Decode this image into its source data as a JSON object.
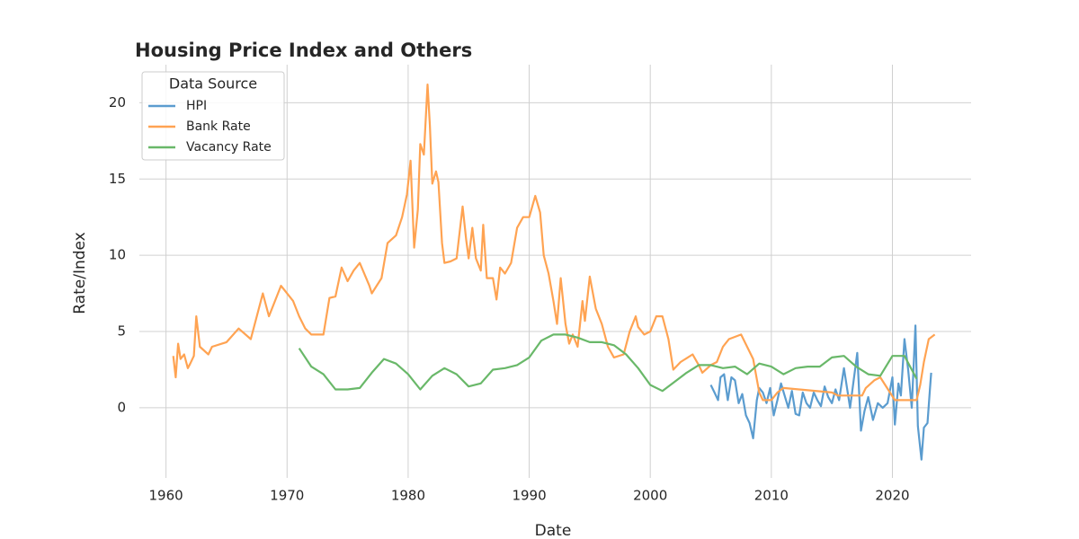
{
  "chart_data": {
    "type": "line",
    "title": "Housing Price Index and Others",
    "x_label": "Date",
    "y_label": "Rate/Index",
    "xlim": [
      1957.8,
      2026.5
    ],
    "xticks": [
      1960,
      1970,
      1980,
      1990,
      2000,
      2010,
      2020
    ],
    "ylim": [
      -4.6,
      22.5
    ],
    "yticks": [
      0,
      5,
      10,
      15,
      20
    ],
    "grid": true,
    "legend_title": "Data Source",
    "legend_position": "upper-left",
    "series": [
      {
        "name": "HPI",
        "color": "#5b9ccf",
        "x": [
          2005.0,
          2005.3,
          2005.6,
          2005.8,
          2006.1,
          2006.4,
          2006.7,
          2007.0,
          2007.3,
          2007.6,
          2007.9,
          2008.2,
          2008.5,
          2008.8,
          2009.0,
          2009.3,
          2009.6,
          2009.9,
          2010.2,
          2010.5,
          2010.8,
          2011.1,
          2011.4,
          2011.7,
          2012.0,
          2012.3,
          2012.6,
          2012.9,
          2013.2,
          2013.5,
          2013.8,
          2014.1,
          2014.4,
          2014.7,
          2015.0,
          2015.3,
          2015.6,
          2016.0,
          2016.5,
          2017.1,
          2017.4,
          2017.7,
          2018.0,
          2018.4,
          2018.8,
          2019.2,
          2019.6,
          2020.0,
          2020.2,
          2020.5,
          2020.7,
          2021.0,
          2021.3,
          2021.6,
          2021.9,
          2022.1,
          2022.4,
          2022.6,
          2022.9,
          2023.1,
          2023.2
        ],
        "values": [
          1.5,
          1.0,
          0.5,
          2.0,
          2.2,
          0.5,
          2.0,
          1.8,
          0.3,
          0.9,
          -0.5,
          -1.0,
          -2.0,
          0.5,
          1.3,
          1.0,
          0.3,
          1.3,
          -0.5,
          0.5,
          1.6,
          0.8,
          0.0,
          1.1,
          -0.4,
          -0.5,
          1.0,
          0.3,
          0.0,
          1.0,
          0.5,
          0.1,
          1.4,
          0.7,
          0.3,
          1.2,
          0.5,
          2.6,
          0.0,
          3.6,
          -1.5,
          -0.2,
          0.7,
          -0.8,
          0.3,
          0.0,
          0.3,
          2.0,
          -1.1,
          1.6,
          0.8,
          4.5,
          2.5,
          0.0,
          5.4,
          -1.2,
          -3.4,
          -1.3,
          -1.0,
          1.2,
          2.3
        ]
      },
      {
        "name": "Bank Rate",
        "color": "#ffa352",
        "x": [
          1960.6,
          1960.8,
          1961.0,
          1961.2,
          1961.5,
          1961.8,
          1962.0,
          1962.3,
          1962.5,
          1962.8,
          1963.5,
          1963.8,
          1965.0,
          1966.0,
          1967.0,
          1967.5,
          1968.0,
          1968.5,
          1969.0,
          1969.5,
          1970.5,
          1971.0,
          1971.5,
          1972.0,
          1973.0,
          1973.5,
          1974.0,
          1974.5,
          1975.0,
          1975.5,
          1976.0,
          1976.8,
          1977.0,
          1977.8,
          1978.3,
          1979.0,
          1979.5,
          1979.9,
          1980.2,
          1980.5,
          1980.8,
          1981.0,
          1981.3,
          1981.6,
          1981.8,
          1982.0,
          1982.3,
          1982.5,
          1982.8,
          1983.0,
          1983.5,
          1984.0,
          1984.5,
          1984.8,
          1985.0,
          1985.3,
          1985.6,
          1986.0,
          1986.2,
          1986.5,
          1987.0,
          1987.3,
          1987.6,
          1988.0,
          1988.5,
          1989.0,
          1989.5,
          1990.0,
          1990.5,
          1990.9,
          1991.2,
          1991.6,
          1992.0,
          1992.3,
          1992.6,
          1993.0,
          1993.3,
          1993.6,
          1994.0,
          1994.4,
          1994.6,
          1995.0,
          1995.5,
          1996.0,
          1996.5,
          1997.0,
          1997.8,
          1998.3,
          1998.8,
          1999.0,
          1999.5,
          2000.0,
          2000.5,
          2001.0,
          2001.5,
          2001.9,
          2002.5,
          2003.5,
          2004.0,
          2004.3,
          2005.0,
          2005.5,
          2006.0,
          2006.5,
          2007.5,
          2008.0,
          2008.5,
          2009.0,
          2009.3,
          2010.0,
          2010.5,
          2011.0,
          2015.0,
          2015.5,
          2017.5,
          2017.8,
          2018.5,
          2019.0,
          2020.2,
          2022.0,
          2022.3,
          2022.6,
          2023.0,
          2023.5
        ],
        "values": [
          3.4,
          2.0,
          4.2,
          3.2,
          3.5,
          2.6,
          2.9,
          3.4,
          6.0,
          4.0,
          3.5,
          4.0,
          4.3,
          5.2,
          4.5,
          6.0,
          7.5,
          6.0,
          7.0,
          8.0,
          7.0,
          6.0,
          5.2,
          4.8,
          4.8,
          7.2,
          7.3,
          9.2,
          8.3,
          9.0,
          9.5,
          8.0,
          7.5,
          8.5,
          10.8,
          11.3,
          12.5,
          14.0,
          16.2,
          10.5,
          13.0,
          17.3,
          16.6,
          21.2,
          18.5,
          14.7,
          15.5,
          14.8,
          10.8,
          9.5,
          9.6,
          9.8,
          13.2,
          11.0,
          9.8,
          11.8,
          9.8,
          9.0,
          12.0,
          8.5,
          8.5,
          7.1,
          9.2,
          8.8,
          9.5,
          11.8,
          12.5,
          12.5,
          13.9,
          12.8,
          10.0,
          8.8,
          7.0,
          5.5,
          8.5,
          5.5,
          4.2,
          4.8,
          4.0,
          7.0,
          5.7,
          8.6,
          6.5,
          5.5,
          4.0,
          3.3,
          3.5,
          5.0,
          6.0,
          5.3,
          4.8,
          5.0,
          6.0,
          6.0,
          4.5,
          2.5,
          3.0,
          3.5,
          2.8,
          2.3,
          2.8,
          3.0,
          4.0,
          4.5,
          4.8,
          4.0,
          3.2,
          1.0,
          0.5,
          0.5,
          1.0,
          1.3,
          1.0,
          0.8,
          0.8,
          1.3,
          1.8,
          2.0,
          0.5,
          0.5,
          1.5,
          3.0,
          4.5,
          4.8
        ]
      },
      {
        "name": "Vacancy Rate",
        "color": "#69b869",
        "x": [
          1971,
          1972,
          1973,
          1974,
          1975,
          1976,
          1977,
          1978,
          1979,
          1980,
          1981,
          1982,
          1983,
          1984,
          1985,
          1986,
          1987,
          1988,
          1989,
          1990,
          1991,
          1992,
          1993,
          1994,
          1995,
          1996,
          1997,
          1998,
          1999,
          2000,
          2001,
          2002,
          2003,
          2004,
          2005,
          2006,
          2007,
          2008,
          2009,
          2010,
          2011,
          2012,
          2013,
          2014,
          2015,
          2016,
          2017,
          2018,
          2019,
          2020,
          2021,
          2022
        ],
        "values": [
          3.9,
          2.7,
          2.2,
          1.2,
          1.2,
          1.3,
          2.3,
          3.2,
          2.9,
          2.2,
          1.2,
          2.1,
          2.6,
          2.2,
          1.4,
          1.6,
          2.5,
          2.6,
          2.8,
          3.3,
          4.4,
          4.8,
          4.8,
          4.6,
          4.3,
          4.3,
          4.1,
          3.5,
          2.6,
          1.5,
          1.1,
          1.7,
          2.3,
          2.8,
          2.8,
          2.6,
          2.7,
          2.2,
          2.9,
          2.7,
          2.2,
          2.6,
          2.7,
          2.7,
          3.3,
          3.4,
          2.7,
          2.2,
          2.1,
          3.4,
          3.4,
          1.9
        ]
      }
    ]
  }
}
